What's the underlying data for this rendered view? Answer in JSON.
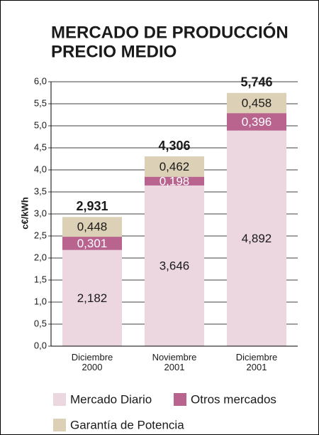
{
  "chart_data": {
    "type": "stacked_bar",
    "title": [
      "MERCADO DE PRODUCCIÓN",
      "PRECIO MEDIO"
    ],
    "y_label": "c€/kWh",
    "categories": [
      "Diciembre 2000",
      "Noviembre 2001",
      "Diciembre 2001"
    ],
    "series": [
      {
        "name": "Mercado Diario",
        "color": "#ecd7e0",
        "label_color": "#1a1a1a",
        "values": [
          2.182,
          3.646,
          4.892
        ],
        "value_labels": [
          "2,182",
          "3,646",
          "4,892"
        ]
      },
      {
        "name": "Otros mercados",
        "color": "#b8648f",
        "label_color": "#ffffff",
        "values": [
          0.301,
          0.198,
          0.396
        ],
        "value_labels": [
          "0,301",
          "0,198",
          "0,396"
        ]
      },
      {
        "name": "Garantía de Potencia",
        "color": "#dcd0b6",
        "label_color": "#1a1a1a",
        "values": [
          0.448,
          0.462,
          0.458
        ],
        "value_labels": [
          "0,448",
          "0,462",
          "0,458"
        ]
      }
    ],
    "totals": {
      "values": [
        2.931,
        4.306,
        5.746
      ],
      "value_labels": [
        "2,931",
        "4,306",
        "5,746"
      ]
    },
    "ylim": [
      0,
      6
    ],
    "yticks": [
      {
        "value": 0,
        "label": "0,0"
      },
      {
        "value": 0.5,
        "label": "0,5"
      },
      {
        "value": 1,
        "label": "1,0"
      },
      {
        "value": 1.5,
        "label": "1,5"
      },
      {
        "value": 2,
        "label": "2,0"
      },
      {
        "value": 2.5,
        "label": "2,5"
      },
      {
        "value": 3,
        "label": "3,0"
      },
      {
        "value": 3.5,
        "label": "3,5"
      },
      {
        "value": 4,
        "label": "4,0"
      },
      {
        "value": 4.5,
        "label": "4,5"
      },
      {
        "value": 5,
        "label": "5,0"
      },
      {
        "value": 5.5,
        "label": "5,5"
      },
      {
        "value": 6,
        "label": "6,0"
      }
    ],
    "grid": true
  }
}
